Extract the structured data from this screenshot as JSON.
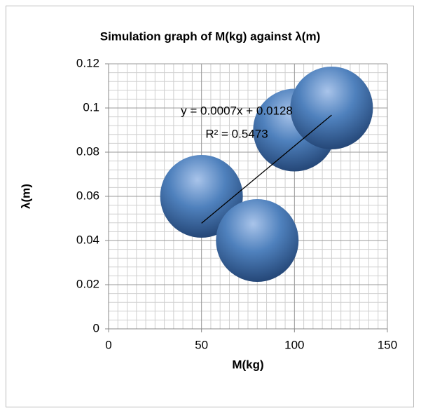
{
  "chart_data": {
    "type": "bubble",
    "title": "Simulation graph of M(kg) against λ(m)",
    "x_label": "M(kg)",
    "y_label": "λ(m)",
    "x": [
      50,
      80,
      100,
      120
    ],
    "values": [
      0.06,
      0.04,
      0.09,
      0.1
    ],
    "sizes": [
      1,
      1,
      1,
      1
    ],
    "color": "#4f81bd",
    "xlim": [
      0,
      150
    ],
    "xticks": [
      0,
      50,
      100,
      150
    ],
    "ylim": [
      0,
      0.12
    ],
    "yticks": [
      0,
      0.02,
      0.04,
      0.06,
      0.08,
      0.1,
      0.12
    ],
    "grid": true,
    "trendline": {
      "slope": 0.0007,
      "intercept": 0.0128,
      "label": "y = 0.0007x + 0.0128",
      "r2_label": "R² = 0.5473"
    }
  }
}
